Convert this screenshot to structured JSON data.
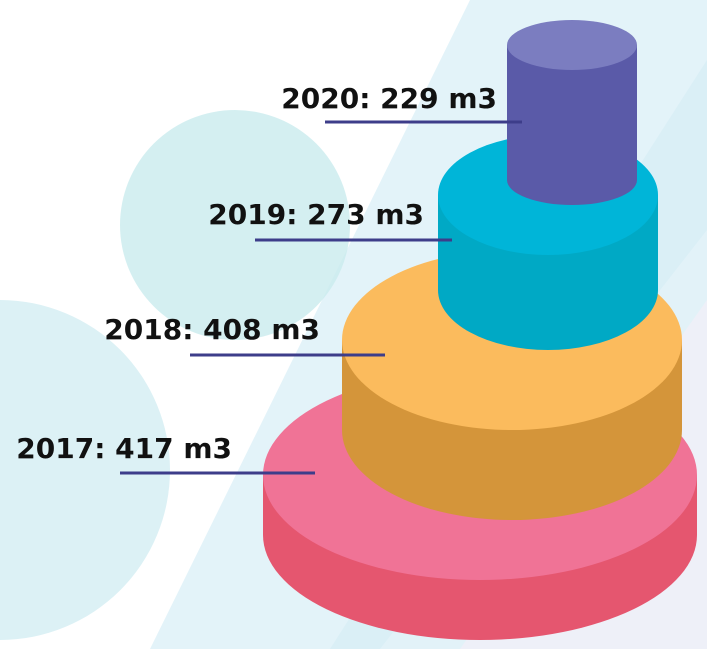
{
  "labels": [
    {
      "text": "2020: 229 m3"
    },
    {
      "text": "2019: 273 m3"
    },
    {
      "text": "2018: 408 m3"
    },
    {
      "text": "2017: 417 m3"
    }
  ]
}
